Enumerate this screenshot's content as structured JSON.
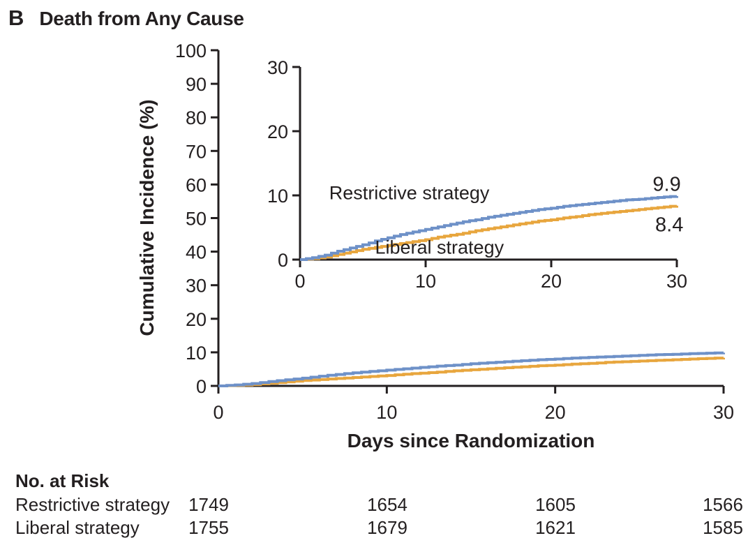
{
  "panel": {
    "label": "B",
    "title": "Death from Any Cause"
  },
  "chart_data": {
    "type": "line",
    "subtype": "step-cumulative-incidence",
    "title": "Death from Any Cause",
    "xlabel": "Days since Randomization",
    "ylabel": "Cumulative Incidence (%)",
    "main_axis": {
      "xlim": [
        0,
        30
      ],
      "ylim": [
        0,
        100
      ],
      "xticks": [
        0,
        10,
        20,
        30
      ],
      "yticks": [
        0,
        10,
        20,
        30,
        40,
        50,
        60,
        70,
        80,
        90,
        100
      ],
      "grid": false
    },
    "inset_axis": {
      "xlim": [
        0,
        30
      ],
      "ylim": [
        0,
        30
      ],
      "xticks": [
        0,
        10,
        20,
        30
      ],
      "yticks": [
        0,
        10,
        20,
        30
      ],
      "grid": false
    },
    "x_days": [
      0,
      1,
      2,
      3,
      4,
      5,
      6,
      7,
      8,
      9,
      10,
      11,
      12,
      13,
      14,
      15,
      16,
      17,
      18,
      19,
      20,
      21,
      22,
      23,
      24,
      25,
      26,
      27,
      28,
      29,
      30
    ],
    "series": [
      {
        "name": "Restrictive strategy",
        "color": "#6e91c8",
        "end_label": "9.9",
        "values": [
          0,
          0.3,
          0.7,
          1.3,
          1.8,
          2.3,
          2.9,
          3.4,
          3.9,
          4.3,
          4.7,
          5.1,
          5.5,
          5.9,
          6.2,
          6.6,
          6.9,
          7.2,
          7.5,
          7.8,
          8.0,
          8.3,
          8.5,
          8.7,
          8.9,
          9.1,
          9.3,
          9.4,
          9.6,
          9.75,
          9.9
        ]
      },
      {
        "name": "Liberal strategy",
        "color": "#e8a63e",
        "end_label": "8.4",
        "values": [
          0,
          0.15,
          0.4,
          0.8,
          1.2,
          1.6,
          1.9,
          2.2,
          2.5,
          2.8,
          3.1,
          3.5,
          3.8,
          4.1,
          4.5,
          4.8,
          5.1,
          5.4,
          5.7,
          6.0,
          6.2,
          6.5,
          6.7,
          7.0,
          7.2,
          7.4,
          7.6,
          7.8,
          8.0,
          8.2,
          8.4
        ]
      }
    ],
    "annotations": [
      {
        "text": "Restrictive strategy",
        "axis": "inset",
        "x": 8.7,
        "y": 10.4,
        "size": 27
      },
      {
        "text": "Liberal strategy",
        "axis": "inset",
        "x": 11.1,
        "y": 1.9,
        "size": 27
      },
      {
        "text": "9.9",
        "axis": "inset",
        "x": 29.2,
        "y": 11.7,
        "size": 29
      },
      {
        "text": "8.4",
        "axis": "inset",
        "x": 29.4,
        "y": 5.4,
        "size": 29
      }
    ],
    "legend_position": "in-plot-labels"
  },
  "risk_table": {
    "title": "No. at Risk",
    "timepoints": [
      0,
      10,
      20,
      30
    ],
    "rows": [
      {
        "label": "Restrictive strategy",
        "values": [
          "1749",
          "1654",
          "1605",
          "1566"
        ]
      },
      {
        "label": "Liberal strategy",
        "values": [
          "1755",
          "1679",
          "1621",
          "1585"
        ]
      }
    ]
  },
  "colors": {
    "restrictive": "#6e91c8",
    "liberal": "#e8a63e",
    "axis": "#231f20",
    "text": "#231f20",
    "background": "#ffffff"
  }
}
